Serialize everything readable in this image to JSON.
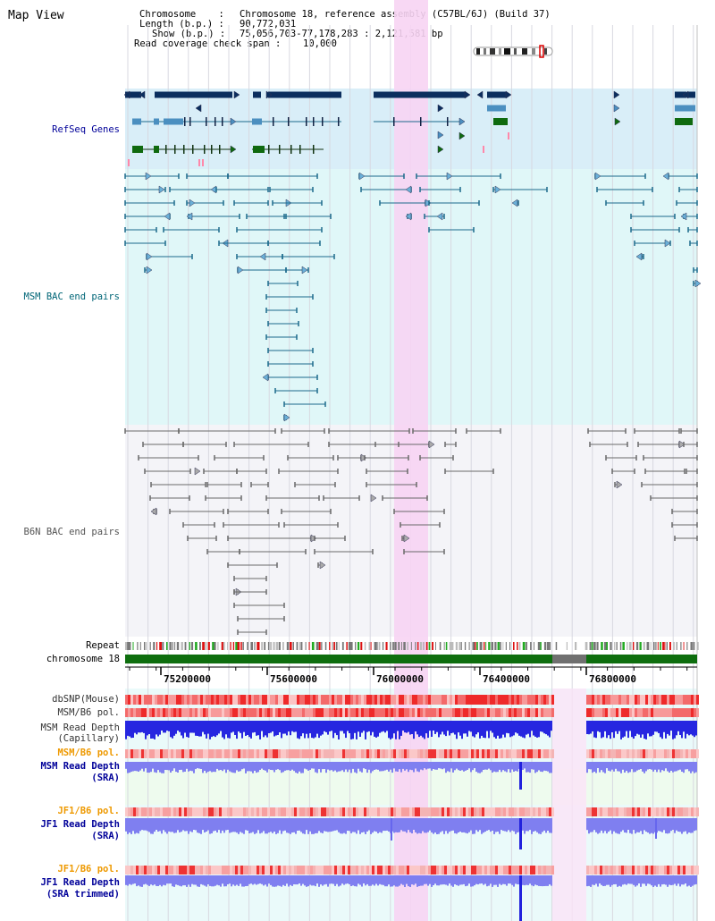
{
  "title": "Map View",
  "info": {
    "chromosome_label": "Chromosome    :",
    "chromosome_value": "Chromosome 18, reference assembly (C57BL/6J) (Build 37)",
    "length_label": "Length (b.p.) :",
    "length_value": "90,772,031",
    "show_label": "Show (b.p.) :",
    "show_value": "75,056,703-77,178,283 : 2,121,581 bp",
    "coverage_label": "Read coverage check span :",
    "coverage_value": "10,000"
  },
  "tracks": {
    "refseq": "RefSeq Genes",
    "msm_bac": "MSM BAC end pairs",
    "b6n_bac": "B6N BAC end pairs",
    "repeat": "Repeat",
    "chromosome": "chromosome 18",
    "dbsnp": "dbSNP(Mouse)",
    "msm_b6_pol": "MSM/B6 pol.",
    "msm_depth_cap_1": "MSM Read Depth",
    "msm_depth_cap_2": "(Capillary)",
    "msm_b6_pol2": "MSM/B6 pol.",
    "msm_depth_sra_1": "MSM Read Depth",
    "msm_depth_sra_2": "(SRA)",
    "jf1_b6_pol": "JF1/B6 pol.",
    "jf1_depth_1": "JF1 Read Depth",
    "jf1_depth_2": "(SRA)",
    "jf1_b6_pol2": "JF1/B6 pol.",
    "jf1_trim_1": "JF1 Read Depth",
    "jf1_trim_2": "(SRA trimmed)"
  },
  "axis": {
    "ticks": [
      "75200000",
      "75600000",
      "76000000",
      "76400000",
      "76800000"
    ]
  },
  "colors": {
    "refseq_bg": "#d9eef8",
    "msm_bg": "#e0f7f8",
    "b6n_bg": "#f4f4f8",
    "highlight": "#f7d4f3",
    "gene_dark": "#0b2e5e",
    "gene_mid": "#4b8fc0",
    "gene_green": "#0f6a0f",
    "msm_line": "#1d6a8c",
    "b6n_line": "#6a6a6a",
    "chromosome": "#0e6e0e",
    "gap": "#707070",
    "depth_blue": "#2222dd",
    "depth_light": "#7f7ff0",
    "label_orange": "#ee9900",
    "label_blue": "#000099",
    "label_teal": "#006677"
  }
}
